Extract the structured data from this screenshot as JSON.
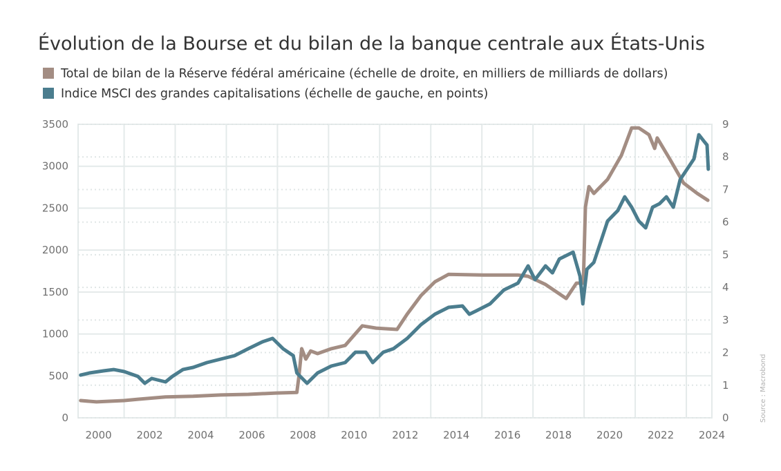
{
  "chart_data": {
    "type": "line",
    "title": "Évolution de la Bourse et du bilan de la banque centrale aux États-Unis",
    "source": "Source : Macrobond",
    "xlim": [
      1999.2,
      2024
    ],
    "xticks": [
      2000,
      2002,
      2004,
      2006,
      2008,
      2010,
      2012,
      2014,
      2016,
      2018,
      2020,
      2022,
      2024
    ],
    "ylim": [
      0,
      3500
    ],
    "yticks": [
      0,
      500,
      1000,
      1500,
      2000,
      2500,
      3000,
      3500
    ],
    "y2lim": [
      0,
      9
    ],
    "y2ticks": [
      0,
      1,
      2,
      3,
      4,
      5,
      6,
      7,
      8,
      9
    ],
    "grid": true,
    "series": [
      {
        "name": "Total de bilan de la Réserve fédéral américaine (échelle de droite, en milliers de milliards de dollars)",
        "color": "#a38d83",
        "axis": "y2",
        "x": [
          1999.3,
          1999.92,
          2001.0,
          2001.54,
          2002.62,
          2003.7,
          2004.78,
          2005.86,
          2006.95,
          2007.76,
          2007.84,
          2007.95,
          2008.11,
          2008.3,
          2008.57,
          2009.11,
          2009.65,
          2010.32,
          2010.86,
          2011.68,
          2012.08,
          2012.62,
          2013.16,
          2013.7,
          2015.05,
          2016.41,
          2016.81,
          2017.49,
          2018.3,
          2018.7,
          2018.97,
          2019.05,
          2019.19,
          2019.38,
          2019.92,
          2020.46,
          2020.86,
          2021.14,
          2021.54,
          2021.76,
          2021.86,
          2022.35,
          2022.89,
          2023.43,
          2023.84
        ],
        "values": [
          0.53,
          0.49,
          0.53,
          0.57,
          0.64,
          0.66,
          0.7,
          0.72,
          0.76,
          0.78,
          1.27,
          2.12,
          1.8,
          2.05,
          1.97,
          2.12,
          2.22,
          2.82,
          2.75,
          2.71,
          3.18,
          3.75,
          4.17,
          4.4,
          4.38,
          4.38,
          4.34,
          4.09,
          3.66,
          4.13,
          4.13,
          6.46,
          7.09,
          6.88,
          7.31,
          8.05,
          8.89,
          8.89,
          8.68,
          8.26,
          8.58,
          7.94,
          7.2,
          6.88,
          6.67
        ]
      },
      {
        "name": "Indice MSCI des grandes capitalisations (échelle de gauche, en points)",
        "color": "#4b7d8e",
        "axis": "y",
        "x": [
          1999.3,
          1999.65,
          2000.19,
          2000.59,
          2001.0,
          2001.54,
          2001.81,
          2002.08,
          2002.62,
          2002.89,
          2003.3,
          2003.7,
          2004.24,
          2004.78,
          2005.32,
          2005.86,
          2006.41,
          2006.81,
          2007.22,
          2007.62,
          2007.76,
          2008.16,
          2008.57,
          2009.11,
          2009.65,
          2010.05,
          2010.46,
          2010.73,
          2011.14,
          2011.54,
          2012.08,
          2012.62,
          2013.16,
          2013.7,
          2014.24,
          2014.51,
          2014.78,
          2015.32,
          2015.86,
          2016.41,
          2016.81,
          2017.08,
          2017.49,
          2017.76,
          2018.03,
          2018.57,
          2018.84,
          2018.95,
          2019.11,
          2019.38,
          2019.65,
          2019.92,
          2020.32,
          2020.59,
          2020.86,
          2021.14,
          2021.41,
          2021.68,
          2021.95,
          2022.22,
          2022.49,
          2022.76,
          2023.03,
          2023.3,
          2023.49,
          2023.7,
          2023.81,
          2023.86
        ],
        "values": [
          510,
          535,
          560,
          576,
          552,
          494,
          412,
          469,
          428,
          494,
          576,
          601,
          659,
          700,
          741,
          824,
          906,
          947,
          824,
          741,
          535,
          412,
          535,
          618,
          659,
          782,
          782,
          659,
          782,
          824,
          947,
          1112,
          1235,
          1318,
          1334,
          1235,
          1276,
          1359,
          1524,
          1606,
          1812,
          1647,
          1812,
          1729,
          1894,
          1976,
          1688,
          1359,
          1771,
          1853,
          2100,
          2347,
          2471,
          2635,
          2512,
          2347,
          2265,
          2512,
          2553,
          2635,
          2512,
          2841,
          2965,
          3088,
          3376,
          3294,
          3253,
          2965
        ]
      }
    ]
  }
}
